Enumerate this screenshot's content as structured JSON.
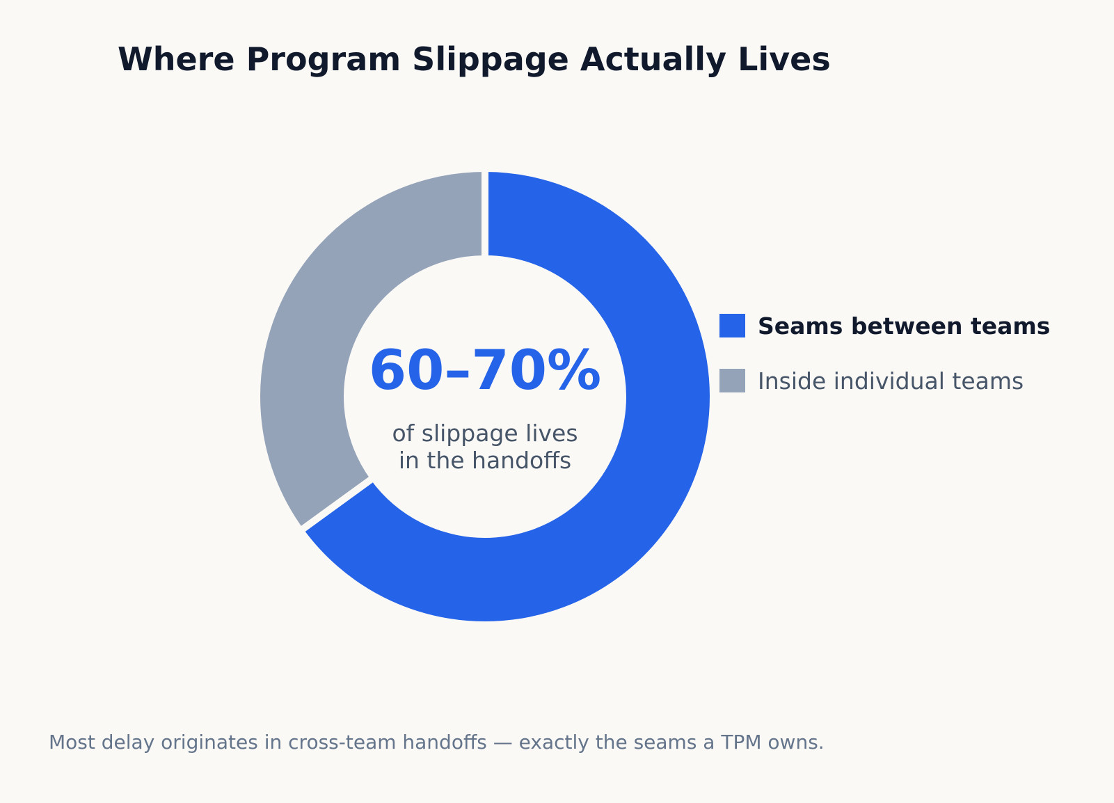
{
  "chart_data": {
    "type": "pie",
    "title": "Where Program Slippage Actually Lives",
    "categories": [
      "Seams between teams",
      "Inside individual teams"
    ],
    "values": [
      65,
      35
    ],
    "colors": [
      "#2563e8",
      "#94a3b8"
    ],
    "center_value": "60–70%",
    "center_caption": [
      "of slippage lives",
      "in the handoffs"
    ],
    "legend_position": "right",
    "footnote": "Most delay originates in cross-team handoffs — exactly the seams a TPM owns."
  }
}
